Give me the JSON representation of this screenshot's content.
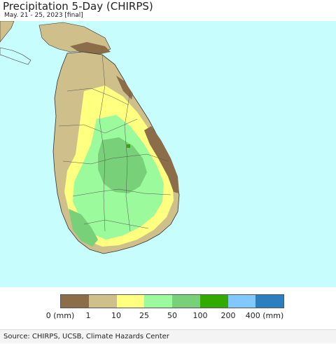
{
  "header": {
    "title": "Precipitation 5-Day (CHIRPS)",
    "subtitle": "May. 21 - 25, 2023 [final]"
  },
  "map": {
    "ocean_color": "#c8fdfd",
    "region": "Sri Lanka",
    "dominant_classes": [
      "1-10",
      "10-25",
      "25-50",
      "50-100"
    ]
  },
  "legend": {
    "classes": [
      {
        "label": "0 (mm)",
        "color": "#8c6d4a"
      },
      {
        "label": "1",
        "color": "#cfbf8a"
      },
      {
        "label": "10",
        "color": "#ffff80"
      },
      {
        "label": "25",
        "color": "#9bfa9b"
      },
      {
        "label": "50",
        "color": "#78d078"
      },
      {
        "label": "100",
        "color": "#33aa00"
      },
      {
        "label": "200",
        "color": "#80c8ff"
      },
      {
        "label": "400 (mm)",
        "color": "#2b7fbf"
      }
    ]
  },
  "footer": {
    "source": "Source: CHIRPS, UCSB, Climate Hazards Center"
  }
}
